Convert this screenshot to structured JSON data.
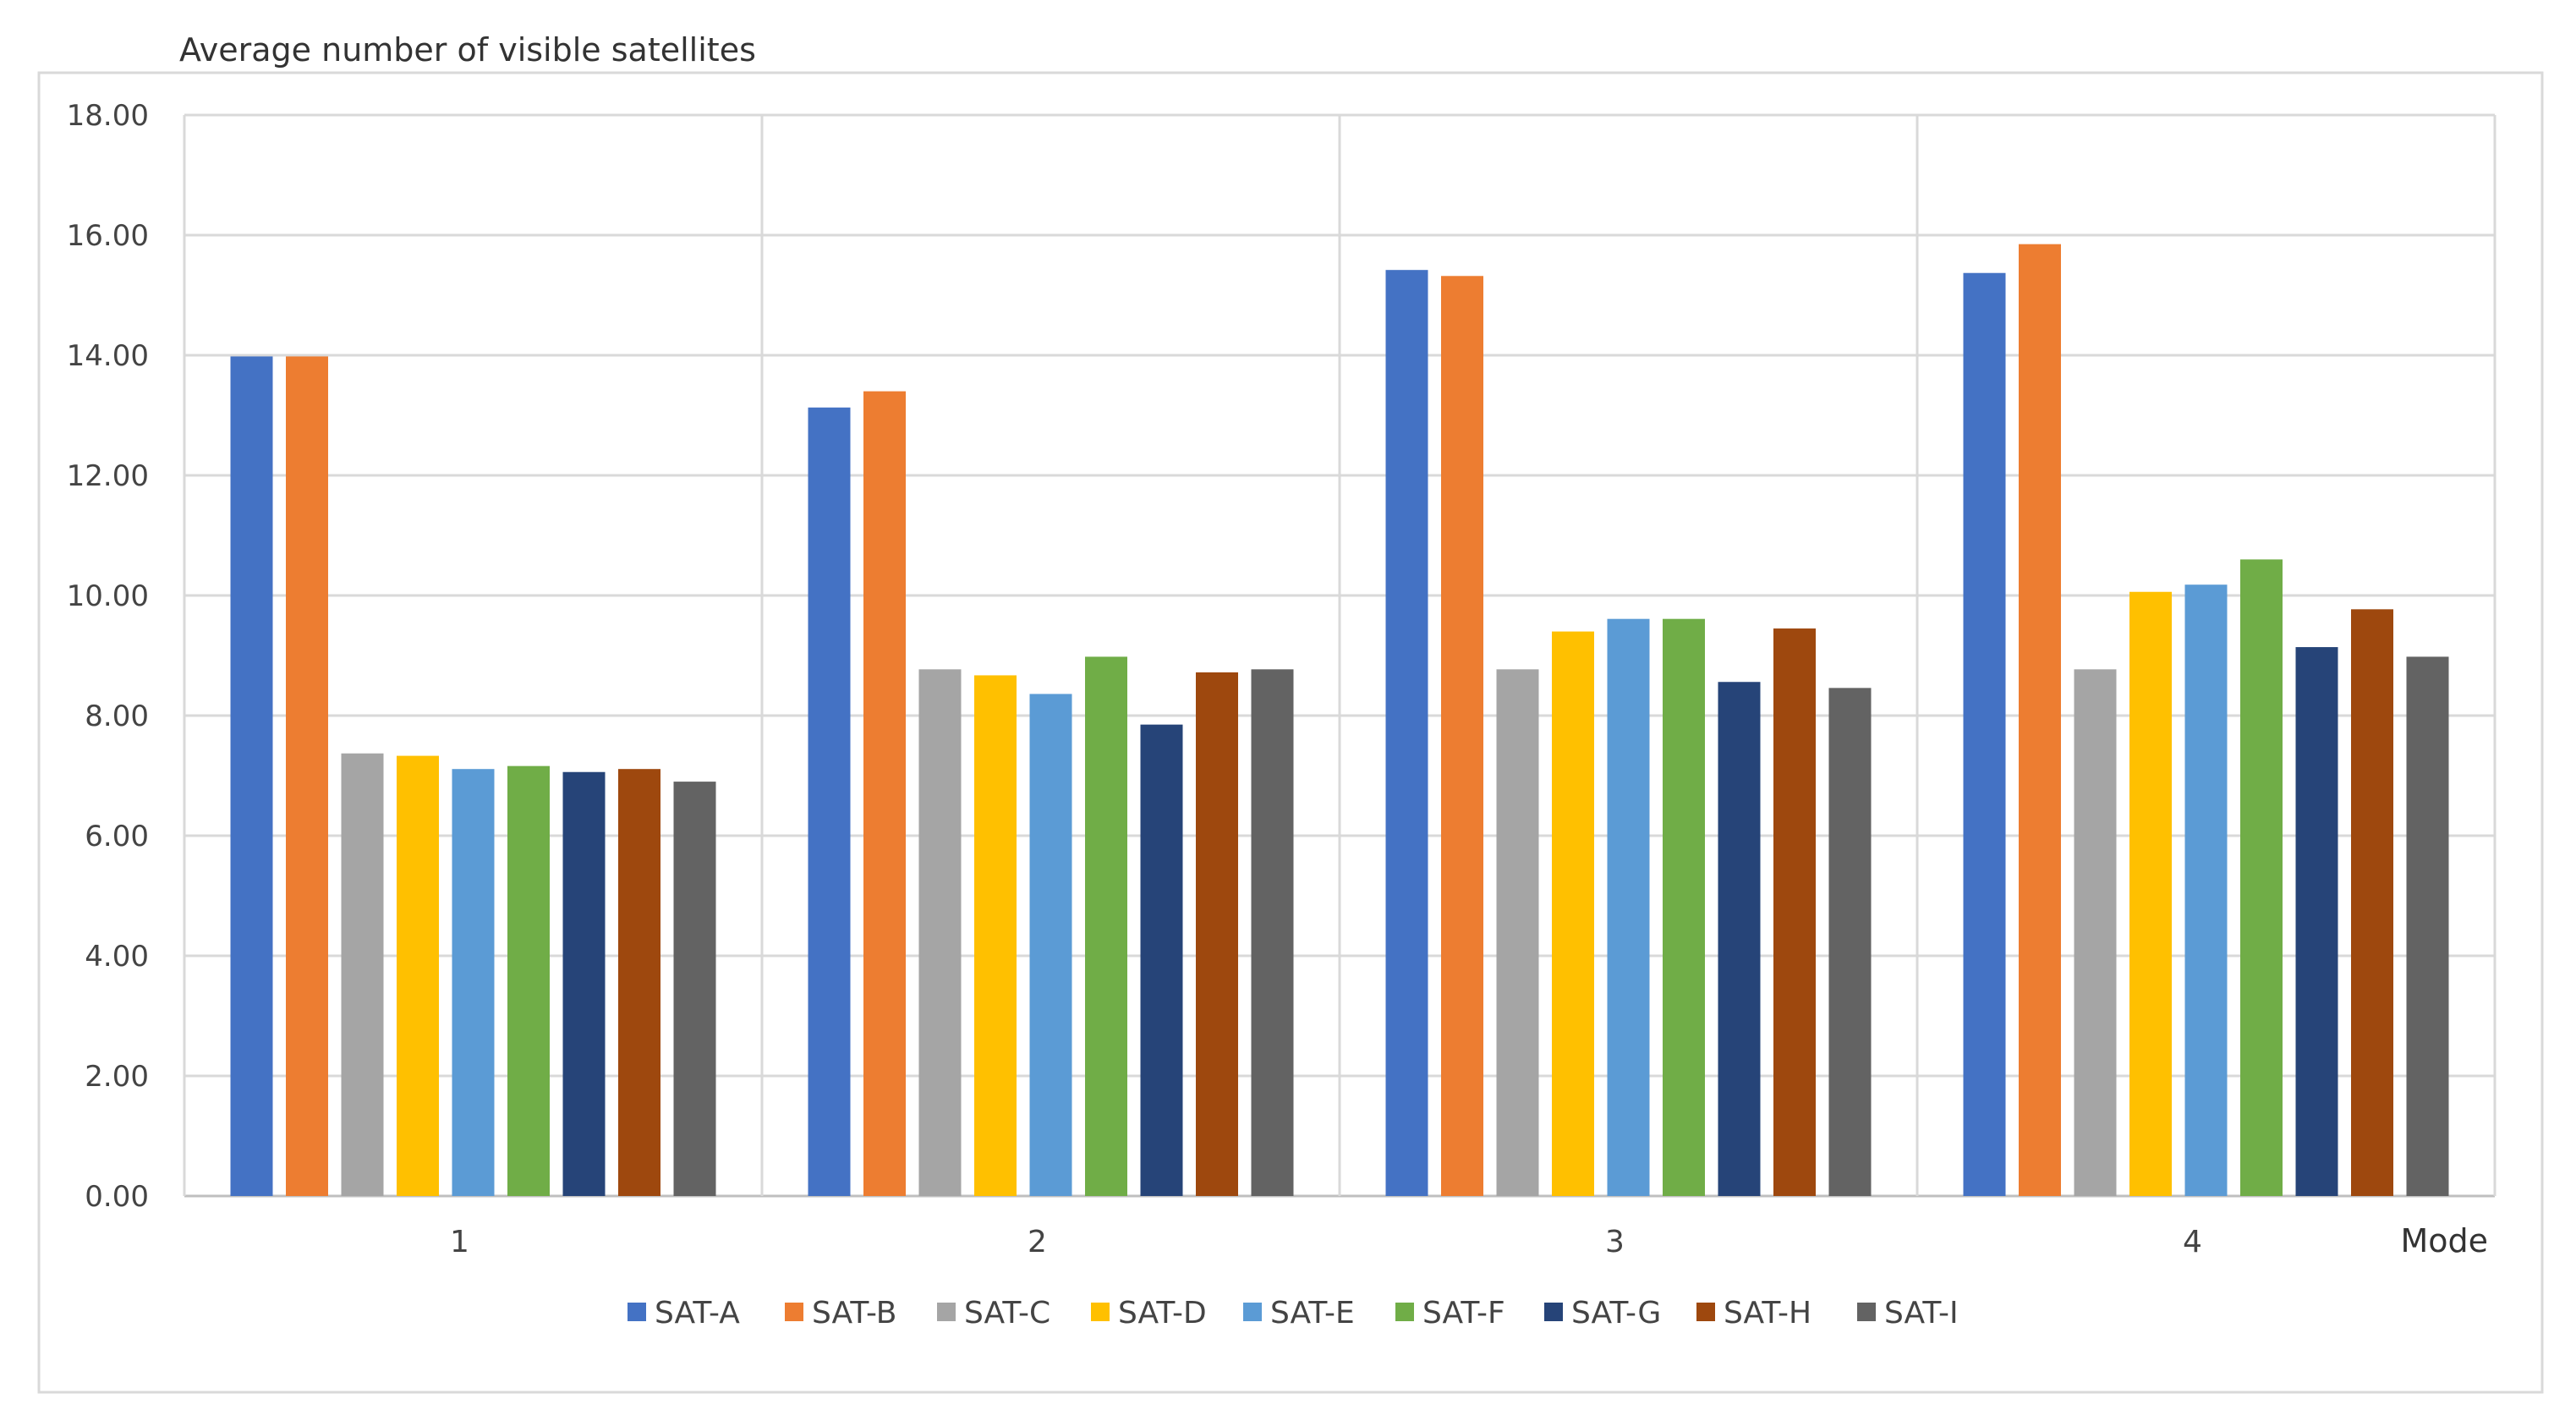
{
  "chart_data": {
    "type": "bar",
    "title": "",
    "ylabel": "Average number of visible satellites",
    "xlabel": "Mode",
    "categories": [
      "1",
      "2",
      "3",
      "4"
    ],
    "ylim": [
      0,
      18
    ],
    "yticks": [
      "0.00",
      "2.00",
      "4.00",
      "6.00",
      "8.00",
      "10.00",
      "12.00",
      "14.00",
      "16.00",
      "18.00"
    ],
    "grid": true,
    "legend_position": "bottom",
    "series": [
      {
        "name": "SAT-A",
        "color": "#4472C4",
        "values": [
          13.98,
          13.13,
          15.42,
          15.37
        ]
      },
      {
        "name": "SAT-B",
        "color": "#ED7D31",
        "values": [
          13.98,
          13.4,
          15.32,
          15.85
        ]
      },
      {
        "name": "SAT-C",
        "color": "#A5A5A5",
        "values": [
          7.37,
          8.77,
          8.77,
          8.77
        ]
      },
      {
        "name": "SAT-D",
        "color": "#FFC000",
        "values": [
          7.33,
          8.67,
          9.4,
          10.06
        ]
      },
      {
        "name": "SAT-E",
        "color": "#5B9BD5",
        "values": [
          7.11,
          8.36,
          9.61,
          10.18
        ]
      },
      {
        "name": "SAT-F",
        "color": "#70AD47",
        "values": [
          7.16,
          8.98,
          9.61,
          10.6
        ]
      },
      {
        "name": "SAT-G",
        "color": "#264478",
        "values": [
          7.06,
          7.85,
          8.56,
          9.14
        ]
      },
      {
        "name": "SAT-H",
        "color": "#9E480E",
        "values": [
          7.11,
          8.72,
          9.45,
          9.77
        ]
      },
      {
        "name": "SAT-I",
        "color": "#636363",
        "values": [
          6.9,
          8.77,
          8.46,
          8.98
        ]
      }
    ]
  }
}
